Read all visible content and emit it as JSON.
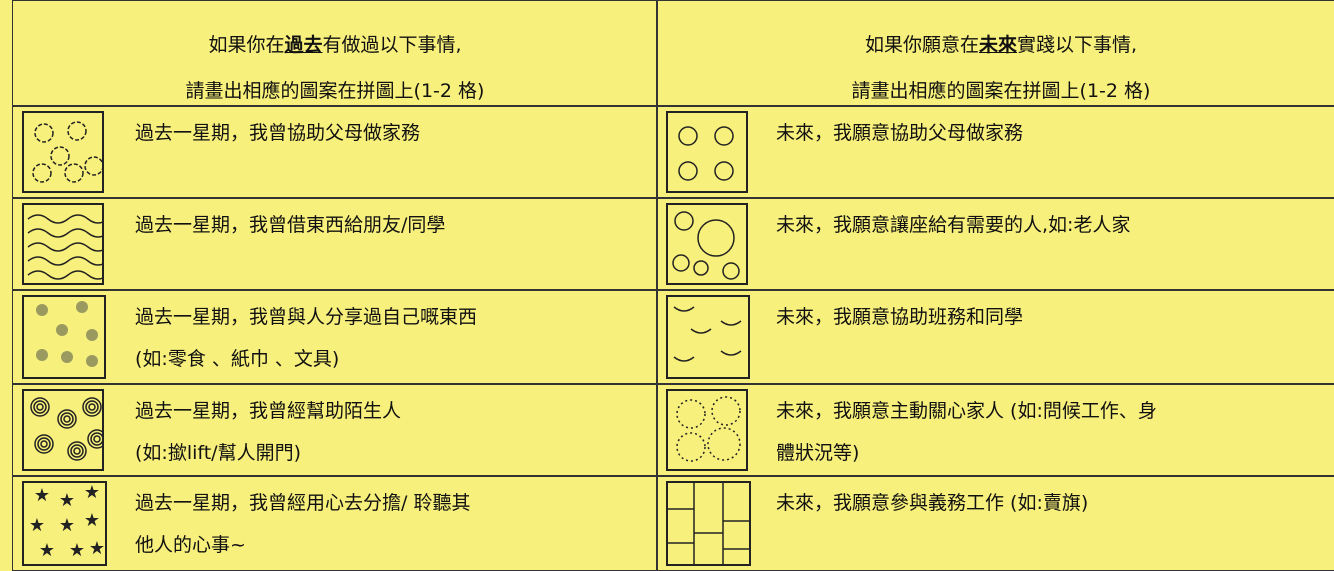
{
  "header": {
    "left": {
      "line1": [
        "如果你在",
        "過去",
        "有做過以下事情,"
      ],
      "line2": "請畫出相應的圖案在拼圖上(1-2 格)"
    },
    "right": {
      "line1": [
        "如果你願意在",
        "未來",
        "實踐以下事情,"
      ],
      "line2": "請畫出相應的圖案在拼圖上(1-2 格)"
    }
  },
  "rows": [
    {
      "left": [
        "過去一星期，我曾協助父母做家務"
      ],
      "right": [
        "未來，我願意協助父母做家務"
      ]
    },
    {
      "left": [
        "過去一星期，我曾借東西給朋友/同學"
      ],
      "right": [
        "未來，我願意讓座給有需要的人,如:老人家"
      ]
    },
    {
      "left": [
        "過去一星期，我曾與人分享過自己嘅東西",
        "(如:零食 、紙巾 、文具)"
      ],
      "right": [
        "未來，我願意協助班務和同學"
      ]
    },
    {
      "left": [
        "過去一星期，我曾經幫助陌生人",
        "(如:撳lift/幫人開門)"
      ],
      "right": [
        "未來，我願意主動關心家人 (如:問候工作、身",
        "體狀況等)"
      ]
    },
    {
      "left": [
        "過去一星期，我曾經用心去分擔/ 聆聽其",
        "他人的心事~"
      ],
      "right": [
        "未來，我願意參與義務工作 (如:賣旗)"
      ]
    }
  ]
}
